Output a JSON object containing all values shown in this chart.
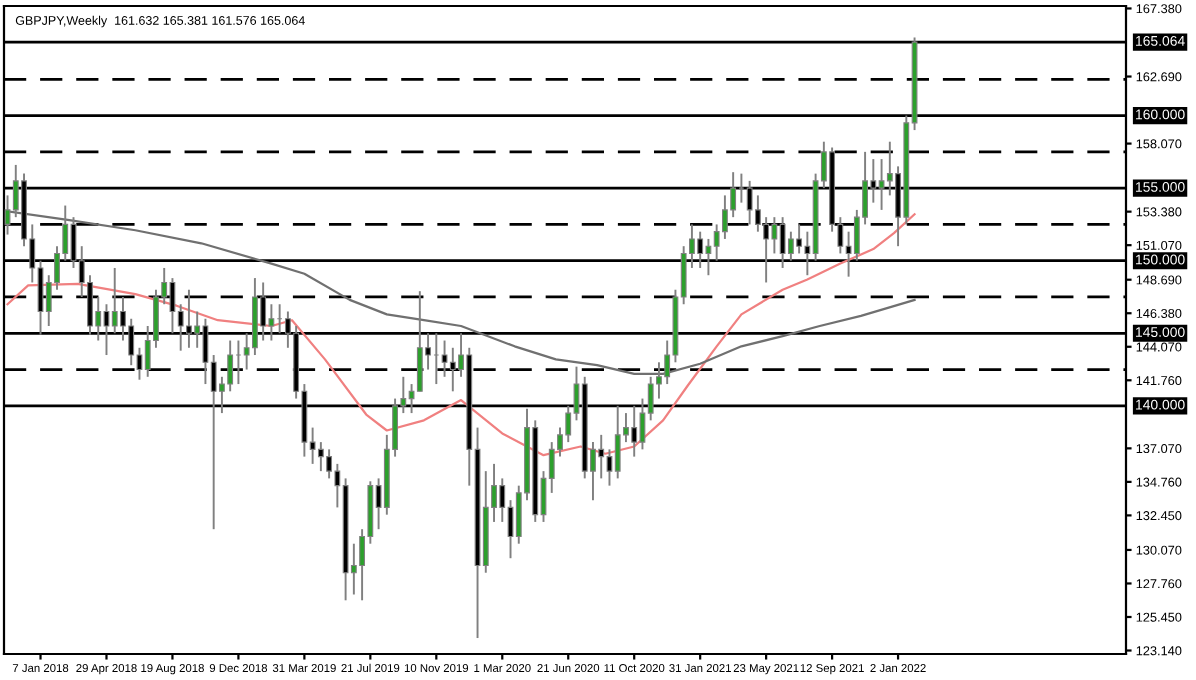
{
  "chart_data": {
    "type": "candlestick",
    "title": "GBPJPY,Weekly  161.632 165.381 161.576 165.064",
    "x": [
      "2017-11-12",
      "2017-11-26",
      "2017-12-10",
      "2017-12-24",
      "2018-01-07",
      "2018-01-21",
      "2018-02-04",
      "2018-02-18",
      "2018-03-04",
      "2018-03-18",
      "2018-04-01",
      "2018-04-15",
      "2018-04-29",
      "2018-05-13",
      "2018-05-27",
      "2018-06-10",
      "2018-06-24",
      "2018-07-08",
      "2018-07-22",
      "2018-08-05",
      "2018-08-19",
      "2018-09-02",
      "2018-09-16",
      "2018-09-30",
      "2018-10-14",
      "2018-10-28",
      "2018-11-11",
      "2018-11-25",
      "2018-12-09",
      "2018-12-23",
      "2019-01-06",
      "2019-01-20",
      "2019-02-03",
      "2019-02-17",
      "2019-03-03",
      "2019-03-17",
      "2019-03-31",
      "2019-04-14",
      "2019-04-28",
      "2019-05-12",
      "2019-05-26",
      "2019-06-09",
      "2019-06-23",
      "2019-07-07",
      "2019-07-21",
      "2019-08-04",
      "2019-08-18",
      "2019-09-01",
      "2019-09-15",
      "2019-09-29",
      "2019-10-13",
      "2019-10-27",
      "2019-11-10",
      "2019-11-24",
      "2019-12-08",
      "2019-12-22",
      "2020-01-05",
      "2020-01-19",
      "2020-02-02",
      "2020-02-16",
      "2020-03-01",
      "2020-03-15",
      "2020-03-29",
      "2020-04-12",
      "2020-04-26",
      "2020-05-10",
      "2020-05-24",
      "2020-06-07",
      "2020-06-21",
      "2020-07-05",
      "2020-07-19",
      "2020-08-02",
      "2020-08-16",
      "2020-08-30",
      "2020-09-13",
      "2020-09-27",
      "2020-10-11",
      "2020-10-25",
      "2020-11-08",
      "2020-11-22",
      "2020-12-06",
      "2020-12-20",
      "2021-01-03",
      "2021-01-17",
      "2021-01-31",
      "2021-02-14",
      "2021-02-28",
      "2021-03-14",
      "2021-03-28",
      "2021-04-11",
      "2021-04-25",
      "2021-05-09",
      "2021-05-23",
      "2021-06-06",
      "2021-06-20",
      "2021-07-04",
      "2021-07-18",
      "2021-08-01",
      "2021-08-15",
      "2021-08-29",
      "2021-09-12",
      "2021-09-26",
      "2021-10-10",
      "2021-10-24",
      "2021-11-07",
      "2021-11-21",
      "2021-12-05",
      "2021-12-19",
      "2022-01-02",
      "2022-01-16",
      "2022-01-30"
    ],
    "ohlc": [
      [
        152.5,
        154.5,
        151.8,
        153.5
      ],
      [
        153.5,
        156.6,
        153.0,
        155.5
      ],
      [
        155.5,
        156.0,
        151.0,
        151.5
      ],
      [
        151.5,
        152.5,
        148.5,
        149.5
      ],
      [
        149.5,
        150.0,
        144.9,
        146.5
      ],
      [
        146.5,
        149.0,
        145.5,
        148.5
      ],
      [
        148.5,
        151.0,
        148.0,
        150.5
      ],
      [
        150.5,
        153.8,
        150.0,
        152.5
      ],
      [
        152.5,
        153.0,
        149.5,
        150.0
      ],
      [
        150.0,
        151.0,
        147.5,
        148.5
      ],
      [
        148.5,
        149.0,
        144.9,
        145.5
      ],
      [
        145.5,
        147.5,
        144.5,
        146.5
      ],
      [
        146.5,
        147.0,
        143.5,
        145.5
      ],
      [
        145.5,
        149.5,
        145.0,
        146.5
      ],
      [
        146.5,
        147.5,
        144.5,
        145.5
      ],
      [
        145.5,
        146.0,
        142.8,
        143.5
      ],
      [
        143.5,
        144.0,
        141.8,
        142.5
      ],
      [
        142.5,
        145.5,
        142.0,
        144.5
      ],
      [
        144.5,
        148.0,
        144.0,
        147.5
      ],
      [
        147.5,
        149.5,
        147.0,
        148.5
      ],
      [
        148.5,
        148.8,
        145.0,
        146.5
      ],
      [
        146.5,
        147.0,
        143.8,
        145.5
      ],
      [
        145.5,
        148.0,
        144.0,
        145.0
      ],
      [
        145.0,
        146.5,
        144.0,
        145.5
      ],
      [
        145.5,
        146.0,
        141.5,
        143.0
      ],
      [
        143.0,
        143.5,
        131.5,
        141.0
      ],
      [
        141.0,
        142.0,
        139.5,
        141.5
      ],
      [
        141.5,
        144.5,
        141.0,
        143.5
      ],
      [
        143.5,
        144.5,
        141.5,
        143.5
      ],
      [
        143.5,
        145.0,
        142.5,
        144.0
      ],
      [
        144.0,
        148.8,
        143.5,
        147.5
      ],
      [
        147.5,
        148.5,
        144.5,
        145.5
      ],
      [
        145.5,
        147.0,
        144.5,
        146.0
      ],
      [
        146.0,
        147.0,
        145.0,
        146.0
      ],
      [
        146.0,
        146.5,
        144.0,
        145.0
      ],
      [
        145.0,
        145.5,
        140.5,
        141.0
      ],
      [
        141.0,
        141.5,
        136.5,
        137.5
      ],
      [
        137.5,
        138.5,
        136.0,
        137.0
      ],
      [
        137.0,
        137.5,
        135.5,
        136.5
      ],
      [
        136.5,
        137.0,
        135.0,
        135.5
      ],
      [
        135.5,
        136.0,
        133.0,
        134.5
      ],
      [
        134.5,
        135.0,
        126.6,
        128.5
      ],
      [
        128.5,
        130.5,
        127.0,
        129.0
      ],
      [
        129.0,
        131.5,
        126.6,
        131.0
      ],
      [
        131.0,
        134.8,
        130.5,
        134.5
      ],
      [
        134.5,
        135.0,
        131.5,
        133.0
      ],
      [
        133.0,
        138.0,
        132.5,
        137.0
      ],
      [
        137.0,
        140.5,
        136.5,
        140.0
      ],
      [
        140.0,
        142.0,
        139.5,
        140.5
      ],
      [
        140.5,
        141.5,
        139.5,
        141.0
      ],
      [
        141.0,
        147.9,
        141.0,
        144.0
      ],
      [
        144.0,
        145.0,
        142.5,
        143.5
      ],
      [
        143.5,
        145.0,
        141.5,
        143.5
      ],
      [
        143.5,
        144.5,
        142.0,
        143.0
      ],
      [
        143.0,
        144.0,
        141.0,
        142.5
      ],
      [
        142.5,
        145.0,
        142.0,
        143.5
      ],
      [
        143.5,
        144.0,
        134.5,
        137.0
      ],
      [
        137.0,
        138.5,
        124.0,
        129.0
      ],
      [
        129.0,
        135.5,
        128.5,
        133.0
      ],
      [
        133.0,
        136.0,
        132.0,
        134.5
      ],
      [
        134.5,
        135.0,
        132.0,
        133.0
      ],
      [
        133.0,
        133.5,
        129.5,
        131.0
      ],
      [
        131.0,
        134.5,
        130.5,
        134.0
      ],
      [
        134.0,
        139.8,
        133.5,
        138.5
      ],
      [
        138.5,
        139.0,
        132.0,
        132.5
      ],
      [
        132.5,
        135.5,
        132.0,
        135.0
      ],
      [
        135.0,
        137.5,
        134.0,
        137.0
      ],
      [
        137.0,
        138.5,
        136.5,
        138.0
      ],
      [
        138.0,
        140.0,
        137.5,
        139.5
      ],
      [
        139.5,
        142.7,
        139.0,
        141.5
      ],
      [
        141.5,
        142.0,
        135.0,
        135.5
      ],
      [
        135.5,
        137.5,
        133.5,
        137.0
      ],
      [
        137.0,
        138.0,
        135.0,
        136.5
      ],
      [
        136.5,
        137.0,
        134.5,
        135.5
      ],
      [
        135.5,
        140.0,
        135.0,
        138.0
      ],
      [
        138.0,
        139.5,
        137.5,
        138.5
      ],
      [
        138.5,
        140.0,
        136.5,
        137.5
      ],
      [
        137.5,
        140.5,
        137.0,
        139.5
      ],
      [
        139.5,
        142.0,
        139.0,
        141.5
      ],
      [
        141.5,
        143.0,
        140.5,
        142.0
      ],
      [
        142.0,
        144.5,
        141.5,
        143.5
      ],
      [
        143.5,
        148.0,
        143.0,
        147.5
      ],
      [
        147.5,
        151.0,
        147.0,
        150.5
      ],
      [
        150.5,
        152.5,
        149.5,
        151.5
      ],
      [
        151.5,
        152.0,
        149.5,
        150.5
      ],
      [
        150.5,
        151.5,
        149.0,
        151.0
      ],
      [
        151.0,
        152.5,
        150.0,
        152.0
      ],
      [
        152.0,
        154.5,
        151.5,
        153.5
      ],
      [
        153.5,
        156.1,
        153.0,
        155.0
      ],
      [
        155.0,
        156.0,
        154.0,
        155.0
      ],
      [
        155.0,
        155.5,
        152.5,
        153.5
      ],
      [
        153.5,
        154.5,
        152.0,
        152.5
      ],
      [
        152.5,
        153.0,
        148.5,
        151.5
      ],
      [
        151.5,
        153.0,
        150.5,
        152.5
      ],
      [
        152.5,
        153.0,
        149.5,
        150.5
      ],
      [
        150.5,
        152.0,
        150.0,
        151.5
      ],
      [
        151.5,
        152.5,
        150.5,
        151.0
      ],
      [
        151.0,
        152.0,
        149.0,
        150.5
      ],
      [
        150.5,
        156.0,
        150.0,
        155.5
      ],
      [
        155.5,
        158.2,
        155.0,
        157.5
      ],
      [
        157.5,
        157.8,
        152.0,
        152.5
      ],
      [
        152.5,
        153.0,
        150.5,
        151.0
      ],
      [
        151.0,
        152.0,
        148.9,
        150.5
      ],
      [
        150.5,
        153.5,
        150.0,
        153.0
      ],
      [
        153.0,
        157.5,
        152.5,
        155.5
      ],
      [
        155.5,
        157.0,
        154.0,
        155.0
      ],
      [
        155.0,
        157.0,
        153.5,
        155.5
      ],
      [
        155.5,
        158.2,
        154.5,
        156.0
      ],
      [
        156.0,
        156.5,
        151.0,
        153.0
      ],
      [
        153.0,
        160.0,
        152.5,
        159.5
      ],
      [
        159.5,
        165.381,
        159.0,
        165.064
      ]
    ],
    "series": [
      {
        "type": "line",
        "color": "#f08080",
        "x": [
          "2017-11-12",
          "2017-12-17",
          "2018-03-11",
          "2018-06-17",
          "2018-08-26",
          "2018-11-04",
          "2019-02-03",
          "2019-03-10",
          "2019-05-05",
          "2019-07-14",
          "2019-08-18",
          "2019-10-20",
          "2019-12-22",
          "2020-03-01",
          "2020-05-10",
          "2020-07-12",
          "2020-08-23",
          "2020-10-11",
          "2020-11-29",
          "2021-01-10",
          "2021-02-28",
          "2021-04-11",
          "2021-06-20",
          "2021-08-01",
          "2021-09-26",
          "2021-11-21",
          "2021-12-26",
          "2022-01-30"
        ],
        "values": [
          147.0,
          148.3,
          148.4,
          147.7,
          146.9,
          145.9,
          145.5,
          145.9,
          143.2,
          139.4,
          138.3,
          139.0,
          140.4,
          138.1,
          136.6,
          137.2,
          136.7,
          137.2,
          139.0,
          141.4,
          144.1,
          146.3,
          148.0,
          148.7,
          149.8,
          150.8,
          151.9,
          153.2
        ]
      },
      {
        "type": "line",
        "color": "#707070",
        "x": [
          "2017-11-12",
          "2018-02-25",
          "2018-06-17",
          "2018-10-07",
          "2019-02-03",
          "2019-03-31",
          "2019-06-16",
          "2019-08-18",
          "2019-10-20",
          "2019-12-22",
          "2020-03-22",
          "2020-05-31",
          "2020-08-09",
          "2020-10-11",
          "2020-11-29",
          "2021-01-31",
          "2021-04-11",
          "2021-06-20",
          "2021-08-22",
          "2021-10-31",
          "2022-01-30"
        ],
        "values": [
          153.4,
          152.8,
          152.1,
          151.2,
          149.8,
          149.1,
          147.3,
          146.3,
          145.9,
          145.5,
          144.1,
          143.2,
          142.8,
          142.2,
          142.2,
          142.9,
          144.1,
          144.8,
          145.5,
          146.2,
          147.3
        ]
      }
    ],
    "ref_lines": [
      {
        "axis": "y",
        "value": 165.064,
        "label": "165.064",
        "color": "#000000",
        "line_style": "solid"
      },
      {
        "axis": "y",
        "value": 162.5,
        "label": null,
        "color": "#000000",
        "line_style": "dashed"
      },
      {
        "axis": "y",
        "value": 160,
        "label": "160.000",
        "color": "#000000",
        "line_style": "solid"
      },
      {
        "axis": "y",
        "value": 157.5,
        "label": null,
        "color": "#000000",
        "line_style": "dashed"
      },
      {
        "axis": "y",
        "value": 155,
        "label": "155.000",
        "color": "#000000",
        "line_style": "solid"
      },
      {
        "axis": "y",
        "value": 152.5,
        "label": null,
        "color": "#000000",
        "line_style": "dashed"
      },
      {
        "axis": "y",
        "value": 150,
        "label": "150.000",
        "color": "#000000",
        "line_style": "solid"
      },
      {
        "axis": "y",
        "value": 147.5,
        "label": null,
        "color": "#000000",
        "line_style": "dashed"
      },
      {
        "axis": "y",
        "value": 145,
        "label": "145.000",
        "color": "#000000",
        "line_style": "solid"
      },
      {
        "axis": "y",
        "value": 142.5,
        "label": null,
        "color": "#000000",
        "line_style": "dashed"
      },
      {
        "axis": "y",
        "value": 140,
        "label": "140.000",
        "color": "#000000",
        "line_style": "solid"
      }
    ],
    "xlim": [
      "2017-11-06",
      "2023-01-24"
    ],
    "xticks": [
      {
        "value": "2018-01-07",
        "label": "7 Jan 2018"
      },
      {
        "value": "2018-04-29",
        "label": "29 Apr 2018"
      },
      {
        "value": "2018-08-19",
        "label": "19 Aug 2018"
      },
      {
        "value": "2018-12-09",
        "label": "9 Dec 2018"
      },
      {
        "value": "2019-03-31",
        "label": "31 Mar 2019"
      },
      {
        "value": "2019-07-21",
        "label": "21 Jul 2019"
      },
      {
        "value": "2019-11-10",
        "label": "10 Nov 2019"
      },
      {
        "value": "2020-03-01",
        "label": "1 Mar 2020"
      },
      {
        "value": "2020-06-21",
        "label": "21 Jun 2020"
      },
      {
        "value": "2020-10-11",
        "label": "11 Oct 2020"
      },
      {
        "value": "2021-01-31",
        "label": "31 Jan 2021"
      },
      {
        "value": "2021-05-23",
        "label": "23 May 2021"
      },
      {
        "value": "2021-09-12",
        "label": "12 Sep 2021"
      },
      {
        "value": "2022-01-02",
        "label": "2 Jan 2022"
      }
    ],
    "ylim": [
      122.9,
      167.55
    ],
    "yticks": [
      {
        "value": 167.38,
        "label": "167.380"
      },
      {
        "value": 162.69,
        "label": "162.690"
      },
      {
        "value": 158.07,
        "label": "158.070"
      },
      {
        "value": 153.38,
        "label": "153.380"
      },
      {
        "value": 151.07,
        "label": "151.070"
      },
      {
        "value": 148.69,
        "label": "148.690"
      },
      {
        "value": 146.38,
        "label": "146.380"
      },
      {
        "value": 144.07,
        "label": "144.070"
      },
      {
        "value": 141.76,
        "label": "141.760"
      },
      {
        "value": 137.07,
        "label": "137.070"
      },
      {
        "value": 134.76,
        "label": "134.760"
      },
      {
        "value": 132.45,
        "label": "132.450"
      },
      {
        "value": 130.07,
        "label": "130.070"
      },
      {
        "value": 127.76,
        "label": "127.760"
      },
      {
        "value": 125.45,
        "label": "125.450"
      },
      {
        "value": 123.14,
        "label": "123.140"
      }
    ],
    "grid": false,
    "legend": false
  }
}
